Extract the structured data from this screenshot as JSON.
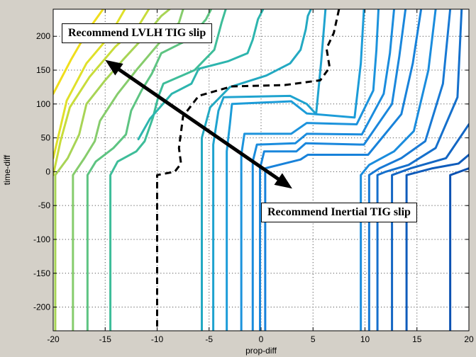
{
  "chart_data": {
    "type": "line",
    "title": "",
    "xlabel": "prop-diff",
    "ylabel": "time-diff",
    "xlim": [
      -20,
      20
    ],
    "ylim": [
      -235,
      240
    ],
    "xticks": [
      -20,
      -15,
      -10,
      -5,
      0,
      5,
      10,
      15,
      20
    ],
    "yticks": [
      -200,
      -150,
      -100,
      -50,
      0,
      50,
      100,
      150,
      200
    ],
    "grid": true,
    "annotations": [
      {
        "text": "Recommend LVLH TIG slip"
      },
      {
        "text": "Recommend Inertial TIG slip"
      }
    ],
    "arrow": {
      "x": [
        -15,
        3
      ],
      "y": [
        165,
        -25
      ]
    },
    "boundary": {
      "style": "dashed",
      "x": [
        7.5,
        7,
        6.3,
        6.6,
        5.7,
        2.3,
        -2.8,
        -6.0,
        -7.5,
        -7.9,
        -7.7,
        -8.3,
        -10.0,
        -10.0
      ],
      "y": [
        240,
        205,
        182,
        154,
        135,
        128,
        126,
        112,
        82,
        35,
        12,
        0,
        -5,
        -235
      ]
    },
    "contours": [
      {
        "color": "#f0de1c",
        "x": [
          -20,
          -18.3,
          -16.6,
          -15.2
        ],
        "y": [
          115,
          165,
          210,
          240
        ]
      },
      {
        "color": "#dfe02a",
        "x": [
          -20,
          -18.7,
          -16.8,
          -14.6,
          -13.1
        ],
        "y": [
          20,
          105,
          160,
          200,
          240
        ]
      },
      {
        "color": "#c8dc3a",
        "x": [
          -20,
          -19.3,
          -18.4,
          -16.5,
          -14.0,
          -11.8,
          -10.8
        ],
        "y": [
          -5,
          45,
          95,
          140,
          185,
          215,
          240
        ]
      },
      {
        "color": "#a8d455",
        "x": [
          -19.8,
          -19.8,
          -18.6,
          -17.5,
          -16.8,
          -15.0,
          -13.3,
          -11.2,
          -9.6,
          -8.8
        ],
        "y": [
          -235,
          -5,
          20,
          55,
          100,
          135,
          165,
          200,
          230,
          240
        ]
      },
      {
        "color": "#86cc6c",
        "x": [
          -18.1,
          -18.1,
          -17.0,
          -16.0,
          -15.5,
          -13.8,
          -12.0,
          -9.8,
          -7.9,
          -7.5
        ],
        "y": [
          -235,
          -5,
          20,
          45,
          75,
          115,
          150,
          190,
          220,
          240
        ]
      },
      {
        "color": "#5ec482",
        "x": [
          -16.7,
          -16.7,
          -15.9,
          -14.2,
          -13.0,
          -12.5,
          -11.5,
          -10.5,
          -9.6,
          -7.0,
          -5.3,
          -4.8
        ],
        "y": [
          -235,
          -5,
          15,
          35,
          55,
          90,
          120,
          145,
          175,
          195,
          225,
          240
        ]
      },
      {
        "color": "#3ebd99",
        "x": [
          -14.5,
          -14.5,
          -13.8,
          -12.0,
          -11.2,
          -10.4,
          -9.9,
          -9.4,
          -6.4,
          -4.5,
          -3.8,
          -3.4
        ],
        "y": [
          -235,
          -5,
          15,
          30,
          45,
          80,
          110,
          130,
          150,
          180,
          220,
          240
        ]
      },
      {
        "color": "#2db5ae",
        "x": [
          -11.8,
          -10.7,
          -8.6,
          -6.7,
          -6.0,
          -3.2,
          -1.3,
          -0.8,
          -0.3,
          0.2
        ],
        "y": [
          48,
          78,
          115,
          130,
          152,
          163,
          175,
          195,
          225,
          240
        ]
      },
      {
        "color": "#23a9c2",
        "x": [
          -5.7,
          -5.7,
          -4.9,
          -3.0,
          0.5,
          2.8,
          3.8,
          4.3,
          4.5,
          4.8
        ],
        "y": [
          -235,
          50,
          95,
          125,
          142,
          160,
          180,
          210,
          230,
          240
        ]
      },
      {
        "color": "#1fa3cf",
        "x": [
          -4.6,
          -4.6,
          -4.1,
          -3.6,
          2.8,
          4.4,
          5.3,
          5.8,
          6.2
        ],
        "y": [
          -235,
          40,
          90,
          110,
          112,
          100,
          85,
          165,
          240
        ]
      },
      {
        "color": "#1c9cd8",
        "x": [
          -3.3,
          -3.3,
          -3.0,
          -2.8,
          2.9,
          4.4,
          9.0,
          9.6,
          9.9
        ],
        "y": [
          -235,
          30,
          70,
          100,
          104,
          86,
          80,
          160,
          240
        ]
      },
      {
        "color": "#1c93dc",
        "x": [
          -1.9,
          -1.9,
          -1.6,
          2.9,
          4.4,
          9.2,
          10.8,
          11.1,
          11.3
        ],
        "y": [
          -235,
          25,
          56,
          56,
          72,
          70,
          120,
          180,
          240
        ]
      },
      {
        "color": "#1a8cdd",
        "x": [
          -0.8,
          -0.8,
          -0.4,
          3.3,
          4.4,
          9.7,
          11.8,
          12.4,
          12.8
        ],
        "y": [
          -235,
          15,
          40,
          42,
          56,
          55,
          115,
          175,
          240
        ]
      },
      {
        "color": "#1a87dc",
        "x": [
          -0.1,
          -0.1,
          0.3,
          3.4,
          4.3,
          9.9,
          12.6,
          13.3,
          13.9
        ],
        "y": [
          -235,
          5,
          30,
          30,
          42,
          40,
          100,
          170,
          240
        ]
      },
      {
        "color": "#1882da",
        "x": [
          0.4,
          0.4,
          3.8,
          4.5,
          10.3,
          13.5,
          14.6,
          15.4
        ],
        "y": [
          -235,
          5,
          18,
          25,
          25,
          85,
          160,
          240
        ]
      },
      {
        "color": "#1a8cdd",
        "x": [
          9.6,
          9.6,
          10.4,
          12.8,
          14.7,
          16.1,
          16.8
        ],
        "y": [
          -235,
          -5,
          10,
          30,
          60,
          150,
          240
        ]
      },
      {
        "color": "#1879d4",
        "x": [
          10.4,
          10.4,
          11.4,
          13.5,
          15.8,
          17.5,
          18.2
        ],
        "y": [
          -235,
          -5,
          5,
          20,
          45,
          130,
          240
        ]
      },
      {
        "color": "#1570cc",
        "x": [
          11.2,
          11.2,
          12.0,
          14.2,
          16.8,
          18.9,
          19.3
        ],
        "y": [
          -235,
          -5,
          0,
          10,
          35,
          110,
          240
        ]
      },
      {
        "color": "#1366c3",
        "x": [
          12.6,
          12.6,
          14.4,
          17.8,
          20.0
        ],
        "y": [
          -235,
          -5,
          5,
          20,
          70
        ]
      },
      {
        "color": "#0f5cbb",
        "x": [
          14.0,
          14.0,
          16.5,
          19.0,
          20.0
        ],
        "y": [
          -235,
          -5,
          5,
          12,
          25
        ]
      },
      {
        "color": "#0c52b2",
        "x": [
          18.2,
          18.2,
          20.0
        ],
        "y": [
          -235,
          -5,
          5
        ]
      }
    ]
  }
}
